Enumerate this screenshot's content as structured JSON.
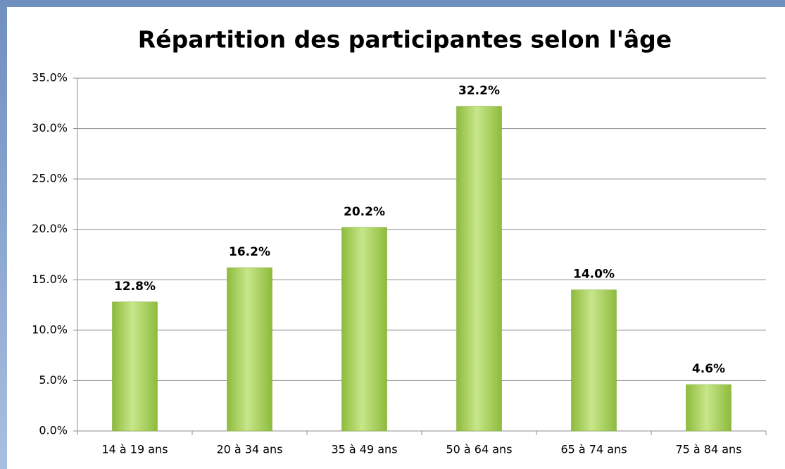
{
  "chart_data": {
    "type": "bar",
    "title": "Répartition des participantes selon l'âge",
    "categories": [
      "14 à 19 ans",
      "20 à 34 ans",
      "35 à 49 ans",
      "50 à 64 ans",
      "65 à 74 ans",
      "75 à 84 ans"
    ],
    "values": [
      12.8,
      16.2,
      20.2,
      32.2,
      14.0,
      4.6
    ],
    "value_labels": [
      "12.8%",
      "16.2%",
      "20.2%",
      "32.2%",
      "14.0%",
      "4.6%"
    ],
    "color": "#8dbb3c",
    "ylim": [
      0,
      35
    ],
    "yticks": [
      {
        "value": 0,
        "label": "0.0%"
      },
      {
        "value": 5,
        "label": "5.0%"
      },
      {
        "value": 10,
        "label": "10.0%"
      },
      {
        "value": 15,
        "label": "15.0%"
      },
      {
        "value": 20,
        "label": "20.0%"
      },
      {
        "value": 25,
        "label": "25.0%"
      },
      {
        "value": 30,
        "label": "30.0%"
      },
      {
        "value": 35,
        "label": "35.0%"
      }
    ],
    "grid": true
  }
}
